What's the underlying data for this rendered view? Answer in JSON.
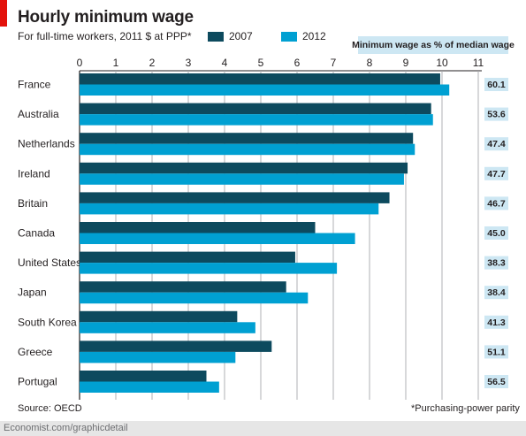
{
  "title": "Hourly minimum wage",
  "subtitle": "For full-time workers, 2011 $ at PPP*",
  "source": "Source: OECD",
  "footnote": "*Purchasing-power parity",
  "site": "Economist.com/graphicdetail",
  "side_header": "Minimum wage as % of median wage",
  "colors": {
    "s2007": "#0d4a5e",
    "s2012": "#00a0d2",
    "accent": "#e3120b",
    "side_bg": "#cde7f3"
  },
  "chart_data": {
    "type": "bar",
    "orientation": "horizontal",
    "categories": [
      "France",
      "Australia",
      "Netherlands",
      "Ireland",
      "Britain",
      "Canada",
      "United States",
      "Japan",
      "South Korea",
      "Greece",
      "Portugal"
    ],
    "series": [
      {
        "name": "2007",
        "values": [
          9.95,
          9.7,
          9.2,
          9.05,
          8.55,
          6.5,
          5.95,
          5.7,
          4.35,
          5.3,
          3.5
        ]
      },
      {
        "name": "2012",
        "values": [
          10.2,
          9.75,
          9.25,
          8.95,
          8.25,
          7.6,
          7.1,
          6.3,
          4.85,
          4.3,
          3.85
        ]
      }
    ],
    "side_values": [
      "60.1",
      "53.6",
      "47.4",
      "47.7",
      "46.7",
      "45.0",
      "38.3",
      "38.4",
      "41.3",
      "51.1",
      "56.5"
    ],
    "x_ticks": [
      0,
      1,
      2,
      3,
      4,
      5,
      6,
      7,
      8,
      9,
      10,
      11
    ],
    "xlim": [
      0,
      11
    ],
    "grid": true,
    "legend": "top"
  }
}
